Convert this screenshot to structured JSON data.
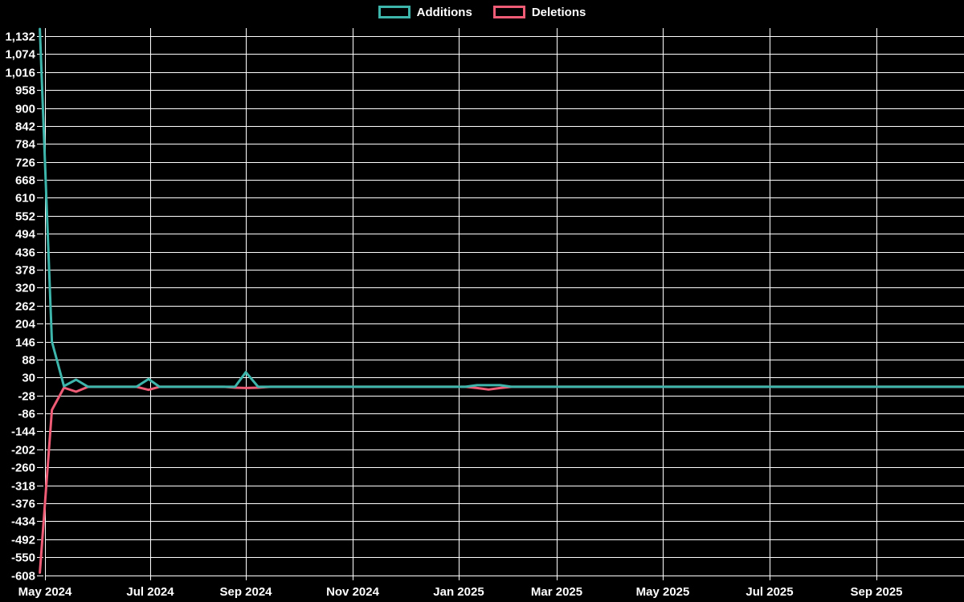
{
  "page": {
    "background": "#000000",
    "grid_color": "#ffffff",
    "text_color": "#ffffff"
  },
  "legend": {
    "items": [
      {
        "label": "Additions",
        "color": "#3db5ab"
      },
      {
        "label": "Deletions",
        "color": "#ee5c75"
      }
    ]
  },
  "chart_data": {
    "type": "line",
    "title": "",
    "xlabel": "",
    "ylabel": "",
    "grid": true,
    "legend_position": "top-center",
    "x_axis": {
      "ticks": [
        {
          "label": "May 2024",
          "date": "2024-05-01"
        },
        {
          "label": "Jul 2024",
          "date": "2024-07-01"
        },
        {
          "label": "Sep 2024",
          "date": "2024-09-01"
        },
        {
          "label": "Nov 2024",
          "date": "2024-11-01"
        },
        {
          "label": "Jan 2025",
          "date": "2025-01-01"
        },
        {
          "label": "Mar 2025",
          "date": "2025-03-01"
        },
        {
          "label": "May 2025",
          "date": "2025-05-01"
        },
        {
          "label": "Jul 2025",
          "date": "2025-07-01"
        },
        {
          "label": "Sep 2025",
          "date": "2025-09-01"
        }
      ]
    },
    "y_axis": {
      "min": -608,
      "max": 1132,
      "step": 58,
      "tick_labels": [
        "1,132",
        "1,074",
        "1,016",
        "958",
        "900",
        "842",
        "784",
        "726",
        "668",
        "610",
        "552",
        "494",
        "436",
        "378",
        "320",
        "262",
        "204",
        "146",
        "88",
        "30",
        "-28",
        "-86",
        "-144",
        "-202",
        "-260",
        "-318",
        "-376",
        "-434",
        "-492",
        "-550",
        "-608"
      ]
    },
    "series": [
      {
        "name": "Additions",
        "color": "#3db5ab",
        "points": [
          [
            "2024-04-28",
            1155
          ],
          [
            "2024-05-05",
            146
          ],
          [
            "2024-05-12",
            2
          ],
          [
            "2024-05-19",
            23
          ],
          [
            "2024-05-26",
            0
          ],
          [
            "2024-06-23",
            0
          ],
          [
            "2024-06-30",
            25
          ],
          [
            "2024-07-07",
            0
          ],
          [
            "2024-08-25",
            0
          ],
          [
            "2024-09-01",
            47
          ],
          [
            "2024-09-08",
            0
          ],
          [
            "2025-01-05",
            0
          ],
          [
            "2025-01-12",
            5
          ],
          [
            "2025-01-19",
            5
          ],
          [
            "2025-01-26",
            5
          ],
          [
            "2025-02-02",
            0
          ],
          [
            "2025-10-26",
            0
          ]
        ]
      },
      {
        "name": "Deletions",
        "color": "#ee5c75",
        "points": [
          [
            "2024-04-28",
            -600
          ],
          [
            "2024-05-05",
            -75
          ],
          [
            "2024-05-12",
            -3
          ],
          [
            "2024-05-19",
            -16
          ],
          [
            "2024-05-26",
            0
          ],
          [
            "2024-06-23",
            0
          ],
          [
            "2024-06-30",
            -10
          ],
          [
            "2024-07-07",
            0
          ],
          [
            "2024-08-18",
            0
          ],
          [
            "2024-08-25",
            -3
          ],
          [
            "2024-09-01",
            -4
          ],
          [
            "2024-09-08",
            -3
          ],
          [
            "2024-09-15",
            0
          ],
          [
            "2025-01-05",
            0
          ],
          [
            "2025-01-12",
            -4
          ],
          [
            "2025-01-19",
            -9
          ],
          [
            "2025-01-26",
            -4
          ],
          [
            "2025-02-02",
            0
          ],
          [
            "2025-10-26",
            0
          ]
        ]
      }
    ]
  }
}
